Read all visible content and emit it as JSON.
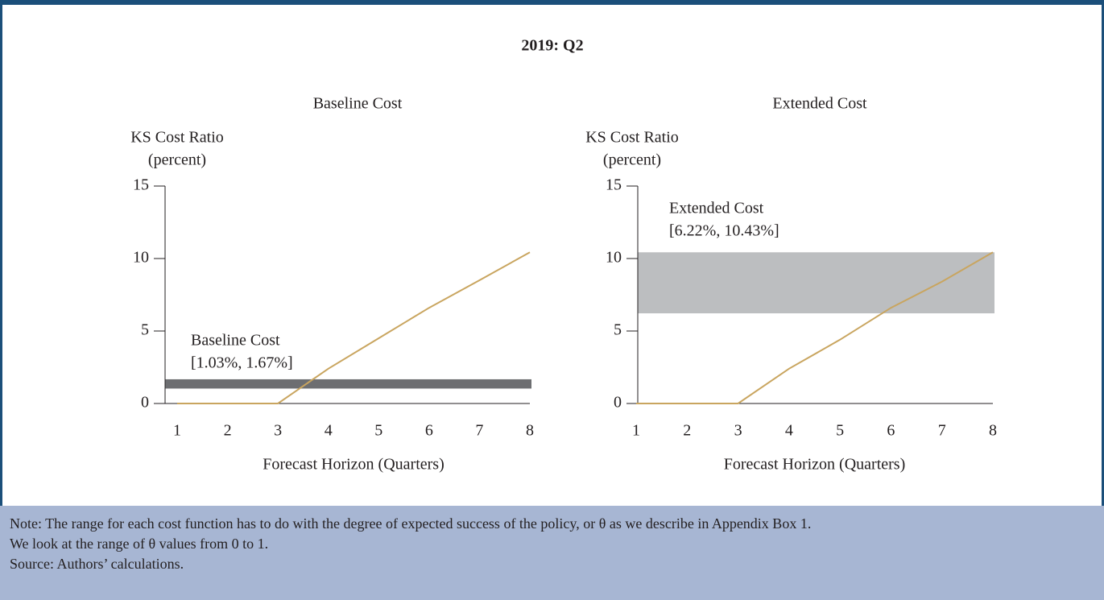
{
  "title": "2019: Q2",
  "chart_data": [
    {
      "type": "line",
      "title": "Baseline Cost",
      "ylabel": [
        "KS Cost Ratio",
        "(percent)"
      ],
      "xlabel": "Forecast Horizon (Quarters)",
      "x": [
        1,
        2,
        3,
        4,
        5,
        6,
        7,
        8
      ],
      "values": [
        0,
        0,
        0,
        2.4,
        4.5,
        6.6,
        8.5,
        10.43
      ],
      "color": "#c9a55f",
      "xlim": [
        1,
        8
      ],
      "xticks": [
        1,
        2,
        3,
        4,
        5,
        6,
        7,
        8
      ],
      "ylim": [
        0,
        15
      ],
      "yticks": [
        0,
        5,
        10,
        15
      ],
      "band": {
        "low": 1.03,
        "high": 1.67,
        "color": "#6d6e71",
        "label": [
          "Baseline Cost",
          "[1.03%, 1.67%]"
        ]
      }
    },
    {
      "type": "line",
      "title": "Extended Cost",
      "ylabel": [
        "KS Cost Ratio",
        "(percent)"
      ],
      "xlabel": "Forecast Horizon (Quarters)",
      "x": [
        1,
        2,
        3,
        4,
        5,
        6,
        7,
        8
      ],
      "values": [
        0,
        0,
        0,
        2.4,
        4.4,
        6.6,
        8.4,
        10.43
      ],
      "color": "#c9a55f",
      "xlim": [
        1,
        8
      ],
      "xticks": [
        1,
        2,
        3,
        4,
        5,
        6,
        7,
        8
      ],
      "ylim": [
        0,
        15
      ],
      "yticks": [
        0,
        5,
        10,
        15
      ],
      "band": {
        "low": 6.22,
        "high": 10.43,
        "color": "#bcbec0",
        "label": [
          "Extended Cost",
          "[6.22%, 10.43%]"
        ]
      }
    }
  ],
  "notes": [
    "Note: The range for each cost function has to do with the degree of expected success of the policy, or θ as we describe in Appendix Box 1.",
    "We look at the range of θ values from 0 to 1.",
    "Source: Authors’ calculations."
  ]
}
